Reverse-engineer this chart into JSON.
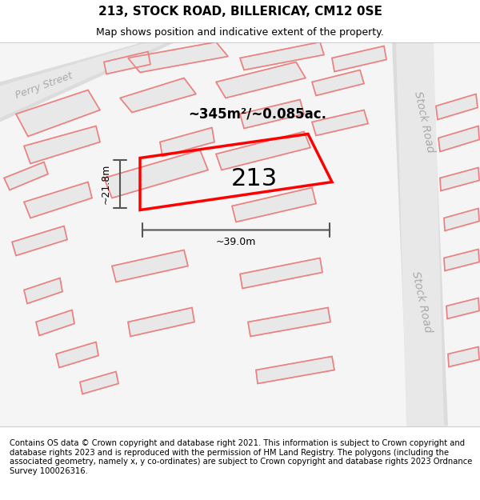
{
  "title": "213, STOCK ROAD, BILLERICAY, CM12 0SE",
  "subtitle": "Map shows position and indicative extent of the property.",
  "footer": "Contains OS data © Crown copyright and database right 2021. This information is subject to Crown copyright and database rights 2023 and is reproduced with the permission of HM Land Registry. The polygons (including the associated geometry, namely x, y co-ordinates) are subject to Crown copyright and database rights 2023 Ordnance Survey 100026316.",
  "area_label": "~345m²/~0.085ac.",
  "property_number": "213",
  "width_label": "~39.0m",
  "height_label": "~21.8m",
  "map_bg": "#f5f5f5",
  "road_color": "#e0e0e0",
  "road_line_color": "#cccccc",
  "building_fill": "#e8e8e8",
  "building_stroke": "#c8c8c8",
  "pink_line_color": "#f08080",
  "red_polygon_color": "#ff0000",
  "dim_line_color": "#555555",
  "street_label_color": "#aaaaaa",
  "perry_street_label": "Perry Street",
  "stock_road_label1": "Stock Road",
  "stock_road_label2": "Stock Road",
  "title_fontsize": 11,
  "subtitle_fontsize": 9,
  "footer_fontsize": 7.2
}
